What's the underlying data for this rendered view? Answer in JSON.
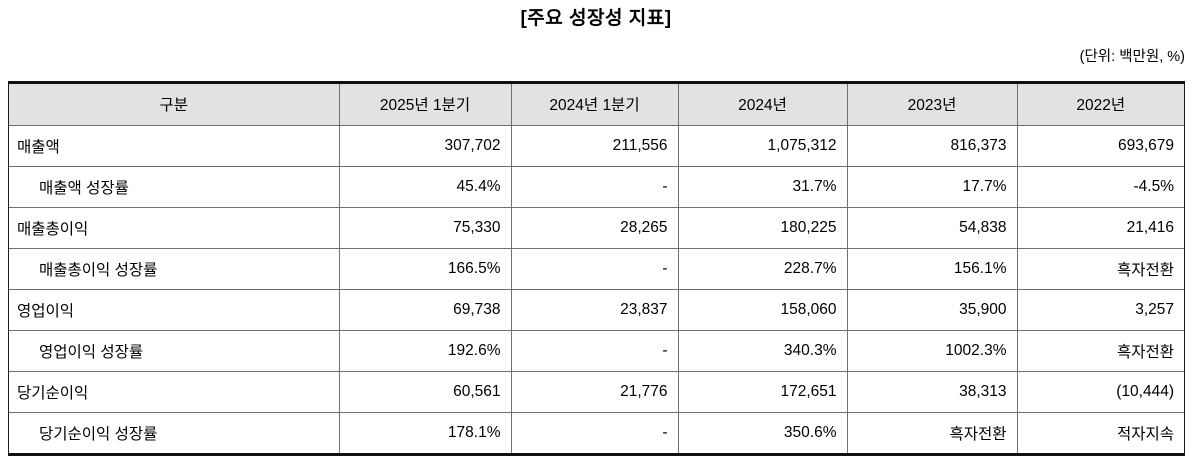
{
  "page": {
    "title": "[주요 성장성 지표]",
    "unit_note": "(단위: 백만원, %)"
  },
  "colors": {
    "header_bg": "#e2e2e2",
    "inner_border": "#6f6f6f",
    "outer_border": "#111111",
    "text": "#000000",
    "background": "#ffffff"
  },
  "table": {
    "headers": [
      "구분",
      "2025년 1분기",
      "2024년 1분기",
      "2024년",
      "2023년",
      "2022년"
    ],
    "rows": [
      {
        "label": "매출액",
        "indent": false,
        "values": [
          "307,702",
          "211,556",
          "1,075,312",
          "816,373",
          "693,679"
        ]
      },
      {
        "label": "매출액 성장률",
        "indent": true,
        "values": [
          "45.4%",
          "-",
          "31.7%",
          "17.7%",
          "-4.5%"
        ]
      },
      {
        "label": "매출총이익",
        "indent": false,
        "values": [
          "75,330",
          "28,265",
          "180,225",
          "54,838",
          "21,416"
        ]
      },
      {
        "label": "매출총이익 성장률",
        "indent": true,
        "values": [
          "166.5%",
          "-",
          "228.7%",
          "156.1%",
          "흑자전환"
        ]
      },
      {
        "label": "영업이익",
        "indent": false,
        "values": [
          "69,738",
          "23,837",
          "158,060",
          "35,900",
          "3,257"
        ]
      },
      {
        "label": "영업이익 성장률",
        "indent": true,
        "values": [
          "192.6%",
          "-",
          "340.3%",
          "1002.3%",
          "흑자전환"
        ]
      },
      {
        "label": "당기순이익",
        "indent": false,
        "values": [
          "60,561",
          "21,776",
          "172,651",
          "38,313",
          "(10,444)"
        ]
      },
      {
        "label": "당기순이익 성장률",
        "indent": true,
        "values": [
          "178.1%",
          "-",
          "350.6%",
          "흑자전환",
          "적자지속"
        ]
      }
    ]
  }
}
